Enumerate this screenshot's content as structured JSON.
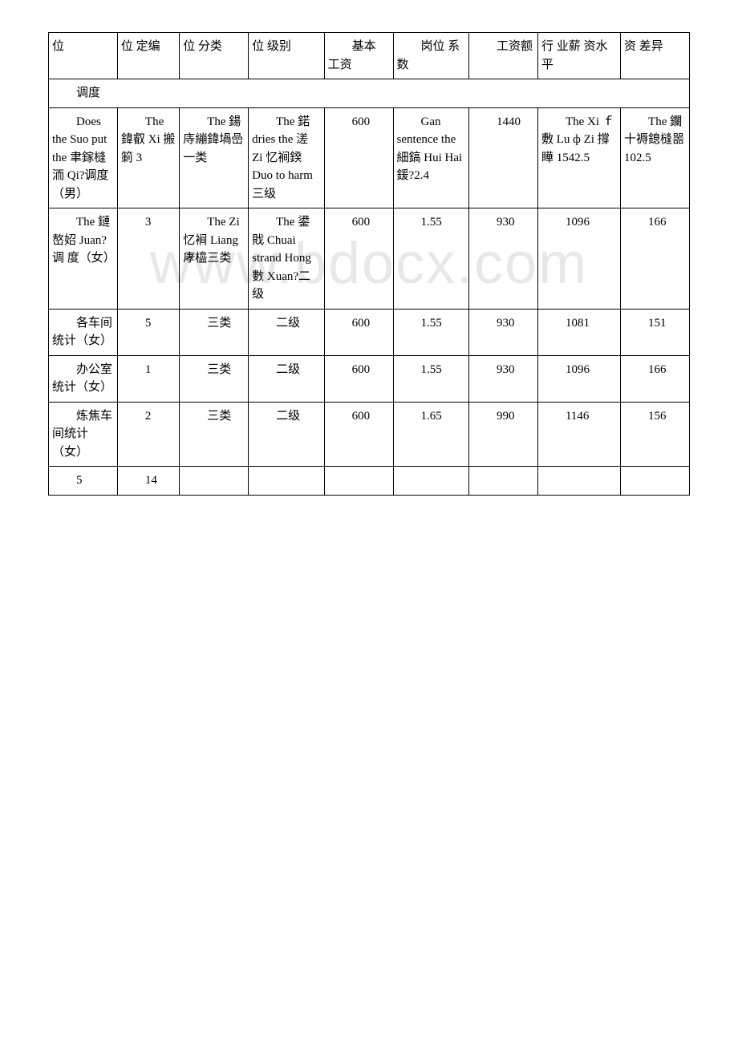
{
  "header": {
    "cells": [
      "位",
      "位 定编",
      "位 分类",
      "位 级别",
      "　　基本 工资",
      "　　岗位 系数",
      "　　工资额",
      "行 业薪 资水 平",
      "资 差异"
    ]
  },
  "section_row": {
    "label": "　　调度"
  },
  "rows": [
    {
      "c0": "　　Does the Suo put the 聿鎵槰洏 Qi?调度（男）",
      "c1": "　　The 鍏叡 Xi 搬箣 3",
      "c2": "　　The 鍚庤繃鍏堝嵒一类",
      "c3": "　　The 鍩 dries the 溠 Zi 忆裥鍨 Duo to harm 三级",
      "c4": "　　600",
      "c5": "　　Gan sentence the 細鎬 Hui Hai 鍰?2.4",
      "c6": "　　1440",
      "c7": "　　The Xi ｆ敷 Lu ф Zi 撐瞱 1542.5",
      "c8": "　　The 鑭十褥鎴槰噐 102.5"
    },
    {
      "c0": "　　The 鏈嶅妱 Juan? 调 度（女）",
      "c1": "　　3",
      "c2": "　　The Zi 忆裥 Liang 庨橀三类",
      "c3": "　　The 鍙戝 Chuai strand Hong 數 Xuan?二级",
      "c4": "　　600",
      "c5": "　　1.55",
      "c6": "　　930",
      "c7": "　　1096",
      "c8": "　　166"
    },
    {
      "c0": "　　各车间统计（女）",
      "c1": "　　5",
      "c2": "　　三类",
      "c3": "　　二级",
      "c4": "　　600",
      "c5": "　　1.55",
      "c6": "　　930",
      "c7": "　　1081",
      "c8": "　　151"
    },
    {
      "c0": "　　办公室统计（女）",
      "c1": "　　1",
      "c2": "　　三类",
      "c3": "　　二级",
      "c4": "　　600",
      "c5": "　　1.55",
      "c6": "　　930",
      "c7": "　　1096",
      "c8": "　　166"
    },
    {
      "c0": "　　炼焦车间统计（女）",
      "c1": "　　2",
      "c2": "　　三类",
      "c3": "　　二级",
      "c4": "　　600",
      "c5": "　　1.65",
      "c6": "　　990",
      "c7": "　　1146",
      "c8": "　　156"
    },
    {
      "c0": "　　5",
      "c1": "　　14",
      "c2": "",
      "c3": "",
      "c4": "",
      "c5": "",
      "c6": "",
      "c7": "",
      "c8": ""
    }
  ],
  "watermark": "www.bdocx.com"
}
